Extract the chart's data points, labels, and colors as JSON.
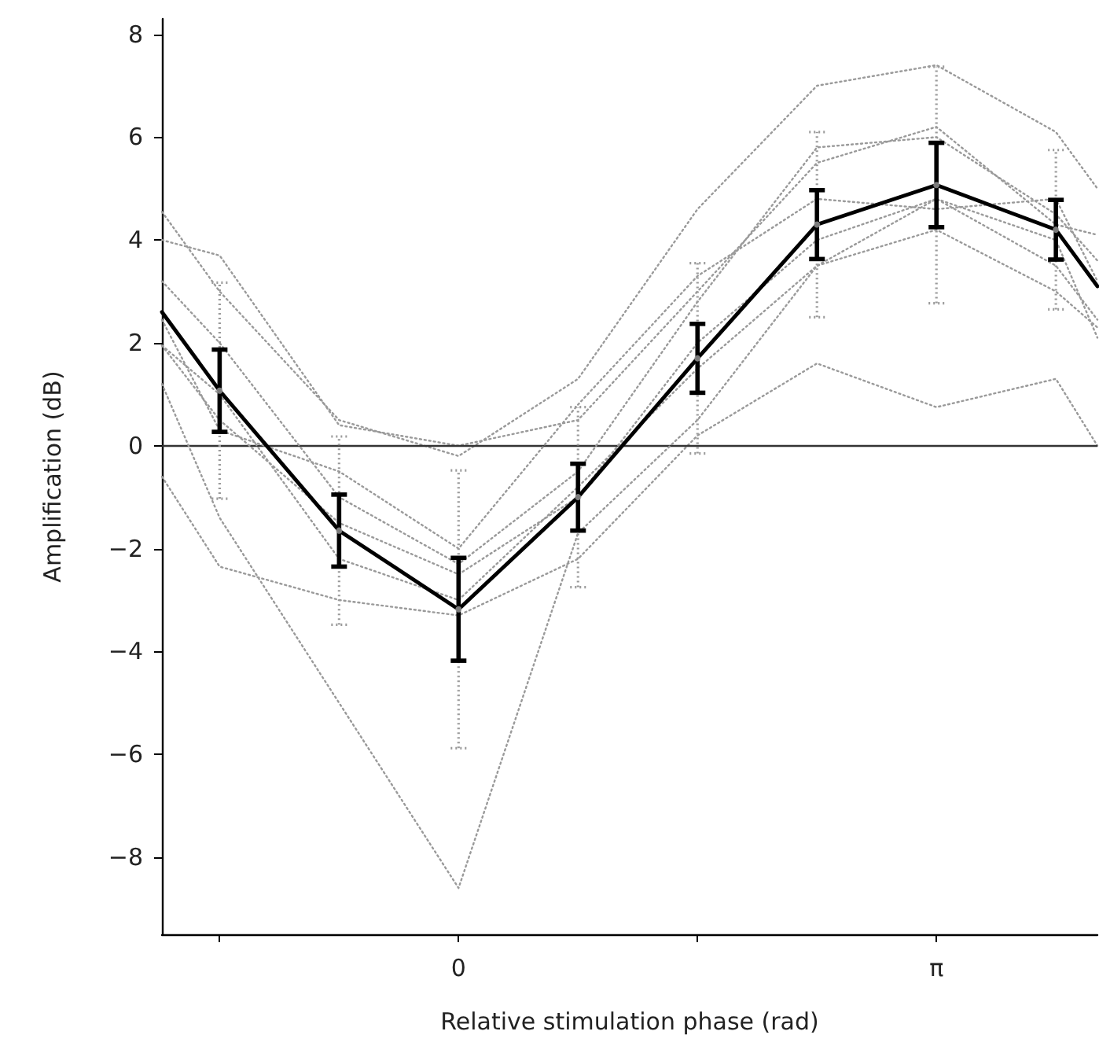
{
  "chart_data": {
    "type": "line",
    "xlabel": "Relative stimulation phase (rad)",
    "ylabel": "Amplification (dB)",
    "x": [
      -1.95,
      -1.5708,
      -0.7854,
      0,
      0.7854,
      1.5708,
      2.3562,
      3.1416,
      3.927,
      4.2
    ],
    "series": [
      {
        "color": "#9a9a9a",
        "line_style": "dotted",
        "marker": "none",
        "values": [
          4.55,
          3.0,
          0.5,
          -0.2,
          1.3,
          4.6,
          7.0,
          7.4,
          6.1,
          5.0
        ]
      },
      {
        "color": "#9a9a9a",
        "line_style": "dotted",
        "marker": "none",
        "values": [
          4.0,
          3.7,
          0.4,
          0.0,
          0.5,
          3.0,
          5.5,
          6.2,
          4.3,
          4.1
        ]
      },
      {
        "color": "#9a9a9a",
        "line_style": "dotted",
        "marker": "none",
        "values": [
          -0.6,
          -2.35,
          -3.0,
          -3.3,
          -2.2,
          0.2,
          1.6,
          0.75,
          1.3,
          0.0
        ]
      },
      {
        "color": "#9a9a9a",
        "line_style": "dotted",
        "marker": "none",
        "values": [
          1.2,
          -1.4,
          -5.0,
          -8.6,
          -1.7,
          0.5,
          3.5,
          4.8,
          4.0,
          2.1
        ]
      },
      {
        "color": "#9a9a9a",
        "line_style": "dotted",
        "marker": "none",
        "values": [
          3.2,
          2.0,
          -1.0,
          -2.3,
          -0.5,
          2.8,
          5.8,
          6.0,
          4.5,
          3.6
        ]
      },
      {
        "color": "#9a9a9a",
        "line_style": "dotted",
        "marker": "none",
        "values": [
          1.95,
          0.5,
          -1.5,
          -2.5,
          -1.0,
          2.0,
          4.0,
          4.8,
          3.5,
          2.45
        ]
      },
      {
        "color": "#9a9a9a",
        "line_style": "dotted",
        "marker": "none",
        "values": [
          1.95,
          1.0,
          -2.2,
          -3.0,
          -0.8,
          1.5,
          3.5,
          4.2,
          3.0,
          2.3
        ]
      },
      {
        "color": "#9a9a9a",
        "line_style": "dotted",
        "marker": "none",
        "values": [
          2.45,
          0.3,
          -0.5,
          -2.0,
          0.8,
          3.3,
          4.8,
          4.6,
          4.8,
          3.2
        ]
      },
      {
        "type": "scatter",
        "color": "#9a9a9a",
        "line_style": "dotted",
        "marker": "circle",
        "values": [
          null,
          1.07,
          -1.65,
          -3.18,
          -1.0,
          1.7,
          4.3,
          5.07,
          4.2,
          null
        ],
        "errors": [
          null,
          2.1,
          1.83,
          2.7,
          1.75,
          1.85,
          1.8,
          2.3,
          1.55,
          null
        ]
      },
      {
        "color": "#000000",
        "line_style": "solid",
        "marker": "none",
        "values": [
          2.6,
          1.07,
          -1.65,
          -3.18,
          -1.0,
          1.7,
          4.3,
          5.07,
          4.2,
          3.1
        ],
        "errors": [
          null,
          0.8,
          0.7,
          1.0,
          0.65,
          0.67,
          0.67,
          0.82,
          0.58,
          null
        ]
      }
    ],
    "xlim": [
      -1.95,
      4.2
    ],
    "xticks": [
      {
        "value": -1.5708,
        "label": null
      },
      0,
      {
        "value": 1.5708,
        "label": null
      },
      {
        "value": 3.1416,
        "label": "π"
      }
    ],
    "ylim": [
      -9.5,
      8.3
    ],
    "yticks": [
      {
        "value": -8,
        "label": "−8"
      },
      {
        "value": -6,
        "label": "−6"
      },
      {
        "value": -4,
        "label": "−4"
      },
      {
        "value": -2,
        "label": "−2"
      },
      0,
      2,
      4,
      6,
      8
    ],
    "ref_lines": [
      {
        "axis": "y",
        "value": 0,
        "color": "#333333",
        "line_style": "solid"
      }
    ],
    "grid": false
  }
}
